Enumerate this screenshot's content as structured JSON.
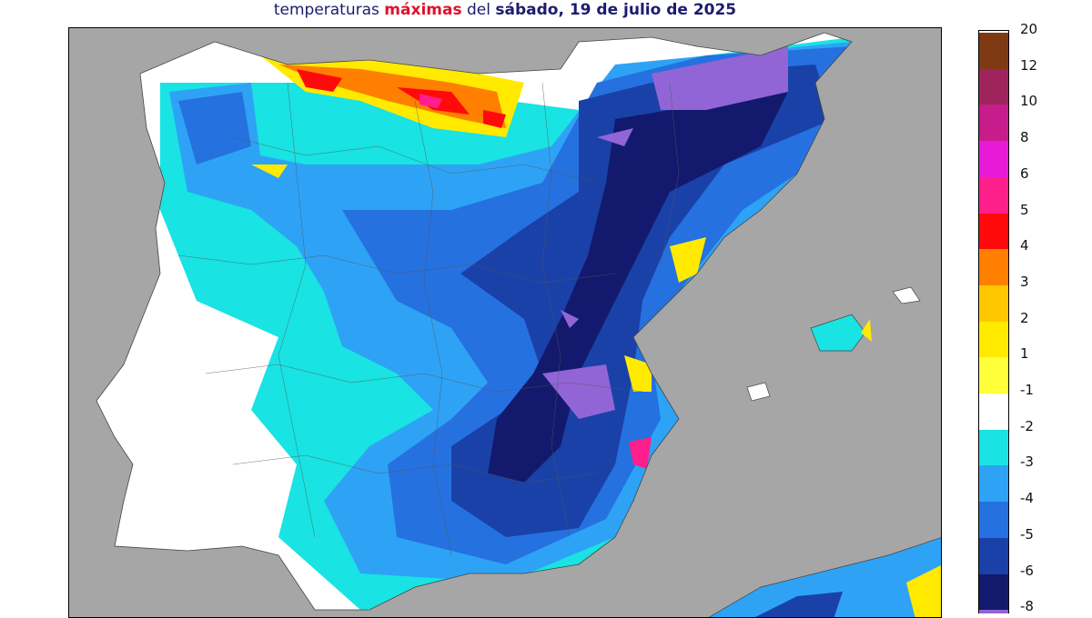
{
  "title": {
    "part1": "temperaturas ",
    "highlight": "máximas",
    "part2": " del ",
    "date_bold": "sábado, 19 de julio de 2025"
  },
  "legend": {
    "levels": [
      {
        "label": "20",
        "color": "#7f3a14"
      },
      {
        "label": "12",
        "color": "#a0245c"
      },
      {
        "label": "10",
        "color": "#c81c8c"
      },
      {
        "label": "8",
        "color": "#e81ad8"
      },
      {
        "label": "6",
        "color": "#ff1f8c"
      },
      {
        "label": "5",
        "color": "#ff0a0a"
      },
      {
        "label": "4",
        "color": "#ff7f00"
      },
      {
        "label": "3",
        "color": "#ffc700"
      },
      {
        "label": "2",
        "color": "#ffea00"
      },
      {
        "label": "1",
        "color": "#ffff3a"
      },
      {
        "label": "-1",
        "color": "#ffffff"
      },
      {
        "label": "-2",
        "color": "#19e3e3"
      },
      {
        "label": "-3",
        "color": "#2ea3f5"
      },
      {
        "label": "-4",
        "color": "#2571e0"
      },
      {
        "label": "-5",
        "color": "#1a41a8"
      },
      {
        "label": "-6",
        "color": "#131a6e"
      },
      {
        "label": "-8",
        "color": "#9265d6"
      }
    ]
  },
  "map_colors": {
    "sea": "#a6a6a6",
    "land_neutral": "#ffffff",
    "cold_light": "#19e3e3",
    "cold_mid": "#2ea3f5",
    "cold_strong": "#2571e0",
    "cold_deep": "#1a41a8",
    "cold_extreme": "#131a6e",
    "cold_purple": "#9265d6",
    "warm_yellow": "#ffea00",
    "warm_orange": "#ff7f00",
    "warm_red": "#ff0a0a",
    "warm_magenta": "#ff1f8c"
  }
}
